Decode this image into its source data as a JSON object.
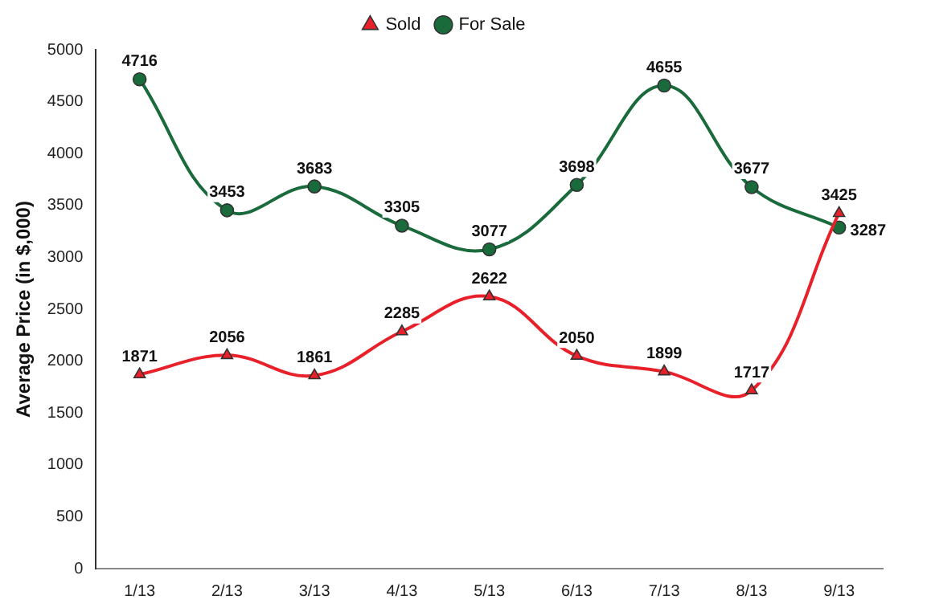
{
  "chart_data": {
    "type": "line",
    "ylabel": "Average Price (in $,000)",
    "categories": [
      "1/13",
      "2/13",
      "3/13",
      "4/13",
      "5/13",
      "6/13",
      "7/13",
      "8/13",
      "9/13"
    ],
    "series": [
      {
        "name": "Sold",
        "color": "#e8202a",
        "marker": "triangle",
        "values": [
          1871,
          2056,
          1861,
          2285,
          2622,
          2050,
          1899,
          1717,
          3425
        ]
      },
      {
        "name": "For Sale",
        "color": "#1a6b3c",
        "marker": "circle",
        "values": [
          4716,
          3453,
          3683,
          3305,
          3077,
          3698,
          4655,
          3677,
          3287
        ]
      }
    ],
    "ylim": [
      0,
      5000
    ],
    "yticks": [
      0,
      500,
      1000,
      1500,
      2000,
      2500,
      3000,
      3500,
      4000,
      4500,
      5000
    ],
    "grid": false,
    "legend": "top",
    "data_labels": true
  }
}
